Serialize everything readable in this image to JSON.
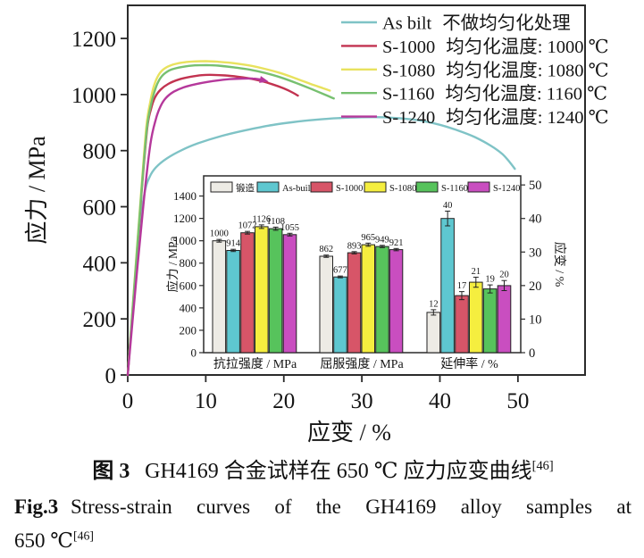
{
  "figure": {
    "caption_cn": {
      "label": "图 3",
      "text": "GH4169 合金试样在 650 ℃ 应力应变曲线",
      "ref": "[46]"
    },
    "caption_en": {
      "label": "Fig.3",
      "line1": "Stress-strain curves of the GH4169 alloy samples at",
      "line2_pre": "650 ℃",
      "ref": "[46]"
    }
  },
  "chart_data": [
    {
      "type": "line",
      "title": "",
      "xlabel": "应变 / %",
      "ylabel": "应力 / MPa",
      "xlim": [
        0,
        58.6
      ],
      "ylim": [
        0,
        1318
      ],
      "xticks": [
        0,
        10,
        20,
        30,
        40,
        50
      ],
      "yticks": [
        0,
        200,
        400,
        600,
        800,
        1000,
        1200
      ],
      "grid": false,
      "legend_position": "top-right",
      "series": [
        {
          "name": "As bilt",
          "desc": "不做均匀化处理",
          "color": "#7fc3c6",
          "points": [
            [
              0,
              0
            ],
            [
              0.8,
              280
            ],
            [
              1.6,
              540
            ],
            [
              2.2,
              655
            ],
            [
              2.8,
              706
            ],
            [
              3.6,
              740
            ],
            [
              5,
              772
            ],
            [
              7,
              803
            ],
            [
              9,
              826
            ],
            [
              12,
              852
            ],
            [
              15,
              872
            ],
            [
              18,
              889
            ],
            [
              21,
              901
            ],
            [
              24,
              910
            ],
            [
              27,
              916
            ],
            [
              30,
              919
            ],
            [
              32.5,
              919
            ],
            [
              35,
              915
            ],
            [
              37.5,
              907
            ],
            [
              40,
              892
            ],
            [
              42.5,
              870
            ],
            [
              44.5,
              848
            ],
            [
              46.5,
              818
            ],
            [
              48,
              788
            ],
            [
              49,
              757
            ],
            [
              49.6,
              735
            ]
          ]
        },
        {
          "name": "S-1000",
          "desc": "均匀化温度: 1000 ℃",
          "color": "#c23350",
          "points": [
            [
              0,
              0
            ],
            [
              0.9,
              330
            ],
            [
              1.8,
              660
            ],
            [
              2.5,
              880
            ],
            [
              3,
              950
            ],
            [
              3.5,
              990
            ],
            [
              4.2,
              1017
            ],
            [
              5.2,
              1038
            ],
            [
              6.5,
              1053
            ],
            [
              8,
              1063
            ],
            [
              9.5,
              1069
            ],
            [
              11,
              1070
            ],
            [
              12.5,
              1068
            ],
            [
              14,
              1064
            ],
            [
              15.5,
              1058
            ],
            [
              17,
              1049
            ],
            [
              18.5,
              1037
            ],
            [
              20,
              1022
            ],
            [
              21.2,
              1006
            ],
            [
              21.8,
              996
            ]
          ]
        },
        {
          "name": "S-1080",
          "desc": "均匀化温度: 1080 ℃",
          "color": "#e8e25e",
          "points": [
            [
              0,
              0
            ],
            [
              0.9,
              345
            ],
            [
              1.8,
              680
            ],
            [
              2.4,
              890
            ],
            [
              2.9,
              975
            ],
            [
              3.3,
              1025
            ],
            [
              3.8,
              1062
            ],
            [
              4.5,
              1088
            ],
            [
              5.5,
              1104
            ],
            [
              7,
              1114
            ],
            [
              8.5,
              1118
            ],
            [
              10,
              1119
            ],
            [
              11.5,
              1117
            ],
            [
              13.5,
              1112
            ],
            [
              15.5,
              1104
            ],
            [
              17.5,
              1092
            ],
            [
              19.5,
              1077
            ],
            [
              21.5,
              1058
            ],
            [
              23.5,
              1037
            ],
            [
              25,
              1023
            ],
            [
              25.9,
              1014
            ]
          ]
        },
        {
          "name": "S-1160",
          "desc": "均匀化温度: 1160 ℃",
          "color": "#77c070",
          "points": [
            [
              0,
              0
            ],
            [
              0.9,
              338
            ],
            [
              1.8,
              668
            ],
            [
              2.45,
              878
            ],
            [
              2.95,
              960
            ],
            [
              3.4,
              1008
            ],
            [
              3.9,
              1045
            ],
            [
              4.6,
              1072
            ],
            [
              5.6,
              1089
            ],
            [
              7.1,
              1099
            ],
            [
              8.6,
              1104
            ],
            [
              10.1,
              1105
            ],
            [
              11.6,
              1103
            ],
            [
              13.6,
              1097
            ],
            [
              15.6,
              1089
            ],
            [
              17.6,
              1077
            ],
            [
              19.6,
              1061
            ],
            [
              21.6,
              1041
            ],
            [
              23.6,
              1019
            ],
            [
              25.4,
              998
            ],
            [
              26.4,
              986
            ]
          ]
        },
        {
          "name": "S-1240",
          "desc": "均匀化温度: 1240 ℃",
          "color": "#b5389b",
          "end_marker": "arrow",
          "points": [
            [
              0,
              0
            ],
            [
              1,
              310
            ],
            [
              2,
              605
            ],
            [
              2.9,
              822
            ],
            [
              3.6,
              912
            ],
            [
              4.2,
              958
            ],
            [
              4.9,
              988
            ],
            [
              5.9,
              1010
            ],
            [
              7.2,
              1026
            ],
            [
              8.7,
              1037
            ],
            [
              10.2,
              1045
            ],
            [
              11.7,
              1051
            ],
            [
              13.2,
              1055
            ],
            [
              14.7,
              1057
            ],
            [
              16,
              1057
            ],
            [
              16.9,
              1054
            ],
            [
              17.5,
              1050
            ]
          ]
        }
      ]
    },
    {
      "type": "bar",
      "title": "",
      "categories": [
        "抗拉强度 / MPa",
        "屈服强度 / MPa",
        "延伸率 / %"
      ],
      "right_axis_categories": [
        "延伸率 / %"
      ],
      "ylabel_left": "应力 / MPa",
      "ylabel_right": "应变 / %",
      "ylim_left": [
        0,
        1580
      ],
      "ylim_right": [
        0,
        52.7
      ],
      "yticks_left": [
        0,
        200,
        400,
        600,
        800,
        1000,
        1200,
        1400
      ],
      "yticks_right": [
        0,
        10,
        20,
        30,
        40,
        50
      ],
      "grid": false,
      "legend_position": "top-inside",
      "series": [
        {
          "name": "锻造",
          "color": "#edebe5",
          "values": [
            1000,
            862,
            12
          ],
          "errors": [
            12,
            10,
            0.8
          ]
        },
        {
          "name": "As-built",
          "color": "#5ec7d0",
          "values": [
            914,
            677,
            40
          ],
          "errors": [
            10,
            8,
            2.2
          ]
        },
        {
          "name": "S-1000",
          "color": "#d75568",
          "values": [
            1072,
            893,
            17
          ],
          "errors": [
            12,
            10,
            1.2
          ]
        },
        {
          "name": "S-1080",
          "color": "#f5ee3f",
          "values": [
            1126,
            965,
            21
          ],
          "errors": [
            16,
            14,
            1.5
          ]
        },
        {
          "name": "S-1160",
          "color": "#57c35c",
          "values": [
            1108,
            949,
            19
          ],
          "errors": [
            14,
            10,
            1.2
          ]
        },
        {
          "name": "S-1240",
          "color": "#c94ec0",
          "values": [
            1055,
            921,
            20
          ],
          "errors": [
            12,
            10,
            1.5
          ]
        }
      ]
    }
  ]
}
